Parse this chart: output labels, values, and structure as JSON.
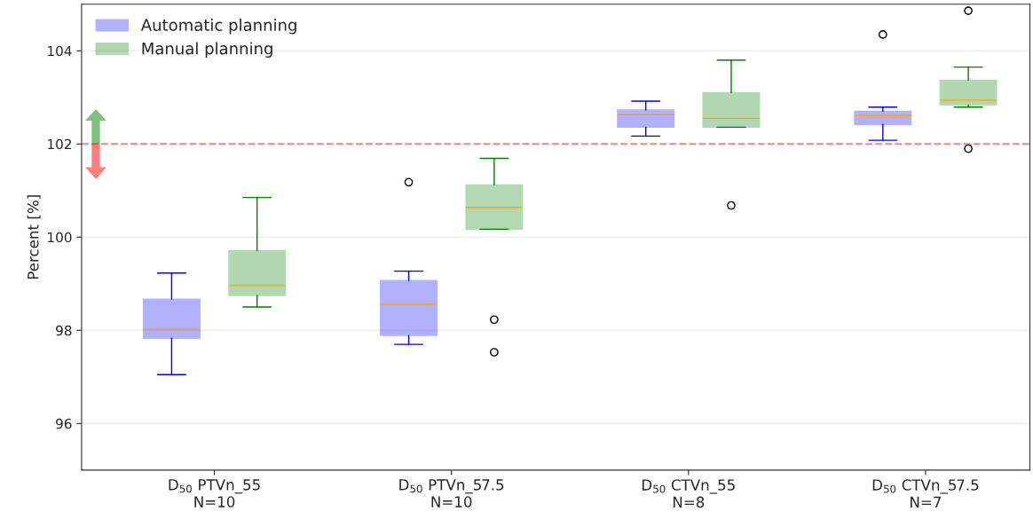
{
  "chart_data": {
    "type": "box",
    "ylabel": "Percent [%]",
    "categories": [
      "D$_{50}$ PTVn_55\nN=10",
      "D$_{50}$ PTVn_57.5\nN=10",
      "D$_{50}$ CTVn_55\nN=8",
      "D$_{50}$ CTVn_57.5\nN=7"
    ],
    "series": [
      {
        "name": "Automatic planning",
        "color": "#0000ff",
        "boxes": [
          {
            "low": 97.05,
            "q1": 97.83,
            "median": 98.02,
            "q3": 98.67,
            "high": 99.23
          },
          {
            "low": 97.7,
            "q1": 97.89,
            "median": 98.56,
            "q3": 99.07,
            "high": 99.27,
            "outliers": [
              101.18
            ]
          },
          {
            "low": 102.17,
            "q1": 102.36,
            "median": 102.63,
            "q3": 102.73,
            "high": 102.92
          },
          {
            "low": 102.08,
            "q1": 102.42,
            "median": 102.61,
            "q3": 102.7,
            "high": 102.79,
            "outliers": [
              104.35
            ]
          }
        ]
      },
      {
        "name": "Manual planning",
        "color": "#008000",
        "boxes": [
          {
            "low": 98.5,
            "q1": 98.75,
            "median": 98.96,
            "q3": 99.71,
            "high": 100.85
          },
          {
            "low": 100.17,
            "q1": 100.17,
            "median": 100.64,
            "q3": 101.12,
            "high": 101.69,
            "outliers": [
              98.23,
              97.53
            ]
          },
          {
            "low": 102.36,
            "q1": 102.36,
            "median": 102.55,
            "q3": 103.1,
            "high": 103.8,
            "outliers": [
              100.68
            ]
          },
          {
            "low": 102.79,
            "q1": 102.84,
            "median": 102.94,
            "q3": 103.37,
            "high": 103.65,
            "outliers": [
              104.86,
              101.9
            ]
          }
        ]
      }
    ],
    "ylim": [
      95,
      105
    ],
    "yticks": [
      96,
      98,
      100,
      102,
      104
    ],
    "ref_lines": [
      {
        "axis": "y",
        "value": 102,
        "color": "#ff0000",
        "line_style": "dashed"
      }
    ],
    "grid": "y",
    "legend": "top left"
  }
}
